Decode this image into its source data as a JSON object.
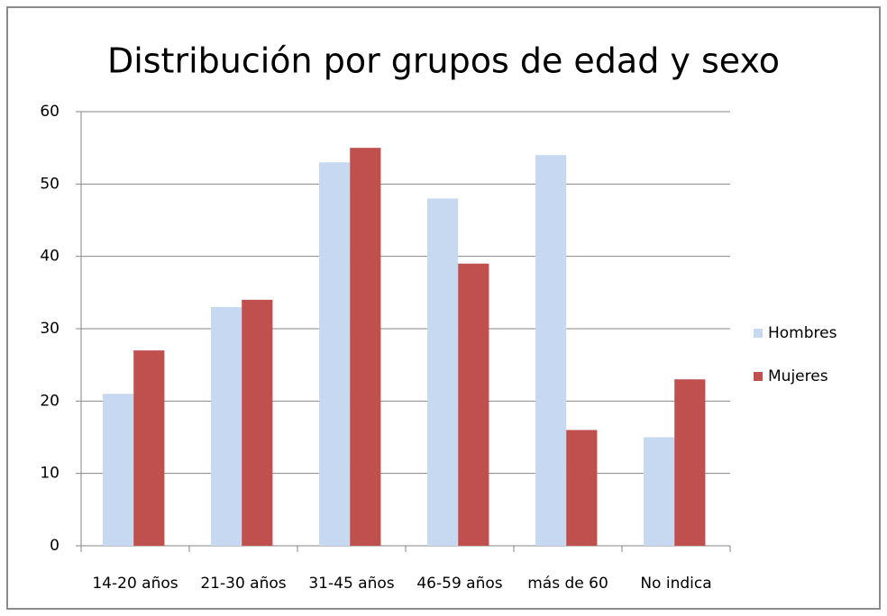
{
  "chart_data": {
    "type": "bar",
    "title": "Distribución por grupos de edad y sexo",
    "categories": [
      "14-20 años",
      "21-30 años",
      "31-45 años",
      "46-59 años",
      "más de 60",
      "No indica"
    ],
    "series": [
      {
        "name": "Hombres",
        "color": "#c6d9f1",
        "values": [
          21,
          33,
          53,
          48,
          54,
          15
        ]
      },
      {
        "name": "Mujeres",
        "color": "#c0504d",
        "values": [
          27,
          34,
          55,
          39,
          16,
          23
        ]
      }
    ],
    "ylim": [
      0,
      60
    ],
    "yticks": [
      0,
      10,
      20,
      30,
      40,
      50,
      60
    ],
    "grid": true,
    "legend": "right"
  }
}
